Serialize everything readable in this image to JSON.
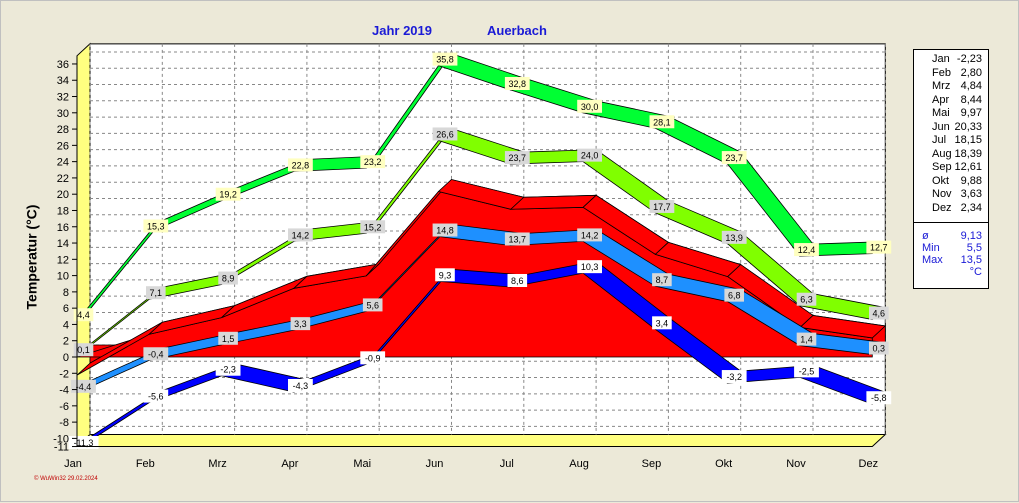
{
  "header": {
    "year_title": "Jahr  2019",
    "location": "Auerbach"
  },
  "footer": "© WuWin32  29.02.2024",
  "stats_panel": {
    "months": [
      {
        "m": "Jan",
        "v": "-2,23"
      },
      {
        "m": "Feb",
        "v": "2,80"
      },
      {
        "m": "Mrz",
        "v": "4,84"
      },
      {
        "m": "Apr",
        "v": "8,44"
      },
      {
        "m": "Mai",
        "v": "9,97"
      },
      {
        "m": "Jun",
        "v": "20,33"
      },
      {
        "m": "Jul",
        "v": "18,15"
      },
      {
        "m": "Aug",
        "v": "18,39"
      },
      {
        "m": "Sep",
        "v": "12,61"
      },
      {
        "m": "Okt",
        "v": "9,88"
      },
      {
        "m": "Nov",
        "v": "3,63"
      },
      {
        "m": "Dez",
        "v": "2,34"
      }
    ],
    "summary": [
      {
        "m": "ø",
        "v": "9,13"
      },
      {
        "m": "Min",
        "v": "5,5"
      },
      {
        "m": "Max",
        "v": "13,5"
      },
      {
        "m": "",
        "v": "°C"
      }
    ]
  },
  "chart_data": {
    "type": "area",
    "title": "Jahr  2019",
    "subtitle": "Auerbach",
    "ylabel": "Temperatur  (°C)",
    "xlabel": "",
    "categories": [
      "Jan",
      "Feb",
      "Mrz",
      "Apr",
      "Mai",
      "Jun",
      "Jul",
      "Aug",
      "Sep",
      "Okt",
      "Nov",
      "Dez"
    ],
    "ylim": [
      -11,
      37
    ],
    "yticks": [
      -11,
      -10,
      -8,
      -6,
      -4,
      -2,
      0,
      2,
      4,
      6,
      8,
      10,
      12,
      14,
      16,
      18,
      20,
      22,
      24,
      26,
      28,
      30,
      32,
      34,
      36
    ],
    "grid": true,
    "series": [
      {
        "role": "abs_max",
        "color": "#00ff33",
        "values": [
          4.4,
          15.3,
          19.2,
          22.8,
          23.2,
          35.8,
          32.8,
          30.0,
          28.1,
          23.7,
          12.4,
          12.7
        ],
        "labels": [
          "4,4",
          "15,3",
          "19,2",
          "22,8",
          "23,2",
          "35,8",
          "32,8",
          "30,0",
          "28,1",
          "23,7",
          "12,4",
          "12,7"
        ]
      },
      {
        "role": "mean_max",
        "color": "#80ff00",
        "values": [
          0.1,
          7.1,
          8.9,
          14.2,
          15.2,
          26.6,
          23.7,
          24.0,
          17.7,
          13.9,
          6.3,
          4.6
        ],
        "labels": [
          "0,1",
          "7,1",
          "8,9",
          "14,2",
          "15,2",
          "26,6",
          "23,7",
          "24,0",
          "17,7",
          "13,9",
          "6,3",
          "4,6"
        ]
      },
      {
        "role": "mean",
        "color": "#ff0000",
        "values": [
          -2.23,
          2.8,
          4.84,
          8.44,
          9.97,
          20.33,
          18.15,
          18.39,
          12.61,
          9.88,
          3.63,
          2.34
        ]
      },
      {
        "role": "mean_min",
        "color": "#1e90ff",
        "values": [
          -4.4,
          -0.4,
          1.5,
          3.3,
          5.6,
          14.8,
          13.7,
          14.2,
          8.7,
          6.8,
          1.4,
          0.3
        ],
        "labels": [
          "-4,4",
          "-0,4",
          "1,5",
          "3,3",
          "5,6",
          "14,8",
          "13,7",
          "14,2",
          "8,7",
          "6,8",
          "1,4",
          "0,3"
        ]
      },
      {
        "role": "abs_min",
        "color": "#0000ff",
        "values": [
          -11.3,
          -5.6,
          -2.3,
          -4.3,
          -0.9,
          9.3,
          8.6,
          10.3,
          3.4,
          -3.2,
          -2.5,
          -5.8
        ],
        "labels": [
          "-11,3",
          "-5,6",
          "-2,3",
          "-4,3",
          "-0,9",
          "9,3",
          "8,6",
          "10,3",
          "3,4",
          "-3,2",
          "-2,5",
          "-5,8"
        ]
      }
    ]
  }
}
